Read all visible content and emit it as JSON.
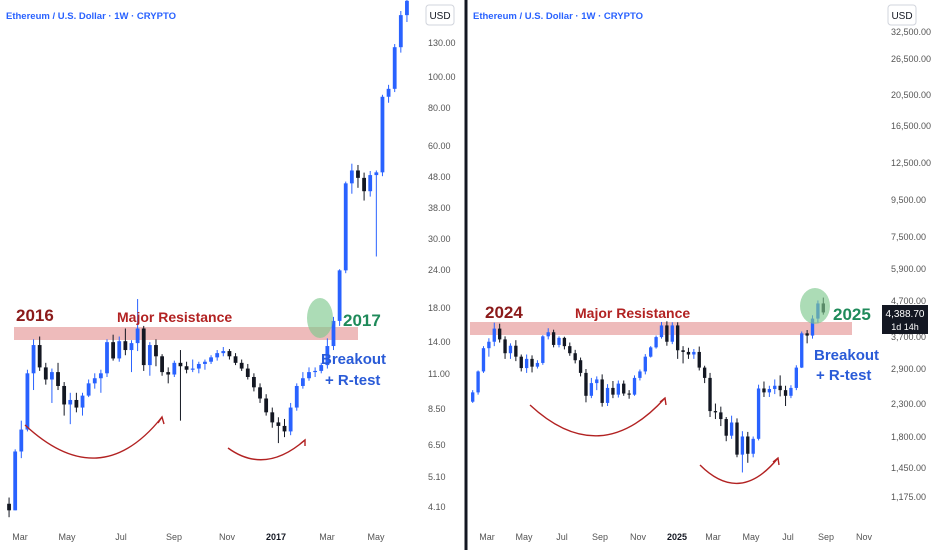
{
  "colors": {
    "up": "#2962ff",
    "down": "#131722",
    "zone": "#e8a4a4",
    "zone_label": "#b22222",
    "year_left": "#8b1a1a",
    "year_right": "#1f8a5a",
    "circle": "#7fc98f",
    "note": "#2a5bd7",
    "arc": "#b22222",
    "axis_text": "#555555",
    "title_text": "#2962ff",
    "divider": "#131722"
  },
  "panels": [
    {
      "id": "left",
      "title": "Ethereum / U.S. Dollar · 1W · CRYPTO",
      "currency": "USD",
      "x_ticks": [
        "Mar",
        "May",
        "Jul",
        "Sep",
        "Nov",
        "2017",
        "Mar",
        "May"
      ],
      "y_ticks": [
        "130.00",
        "100.00",
        "80.00",
        "60.00",
        "48.00",
        "38.00",
        "30.00",
        "24.00",
        "18.00",
        "14.00",
        "11.00",
        "8.50",
        "6.50",
        "5.10",
        "4.10"
      ],
      "zone_label": "Major Resistance",
      "year_start": "2016",
      "year_end": "2017",
      "note_line1": "Breakout",
      "note_line2": "+ R-test"
    },
    {
      "id": "right",
      "title": "Ethereum / U.S. Dollar · 1W · CRYPTO",
      "currency": "USD",
      "x_ticks": [
        "Mar",
        "May",
        "Jul",
        "Sep",
        "Nov",
        "2025",
        "Mar",
        "May",
        "Jul",
        "Sep",
        "Nov"
      ],
      "y_ticks": [
        "32,500.00",
        "26,500.00",
        "20,500.00",
        "16,500.00",
        "12,500.00",
        "9,500.00",
        "7,500.00",
        "5,900.00",
        "4,700.00",
        "3,700.00",
        "2,900.00",
        "2,300.00",
        "1,800.00",
        "1,450.00",
        "1,175.00"
      ],
      "last_price": "4,388.70",
      "countdown": "1d 14h",
      "zone_label": "Major Resistance",
      "year_start": "2024",
      "year_end": "2025",
      "note_line1": "Breakout",
      "note_line2": "+ R-test"
    }
  ],
  "chart_data": [
    {
      "type": "candlestick",
      "title": "Ethereum / U.S. Dollar · 1W · CRYPTO",
      "ylabel": "USD",
      "yscale": "log",
      "ylim": [
        3.6,
        185
      ],
      "resistance_zone": [
        13.9,
        15.2
      ],
      "annotations": [
        "2016",
        "Major Resistance",
        "2017",
        "Breakout",
        "+ R-test"
      ],
      "candles": [
        [
          4.2,
          4.4,
          3.8,
          4.0
        ],
        [
          4.0,
          6.3,
          4.0,
          6.2
        ],
        [
          6.2,
          7.8,
          5.9,
          7.3
        ],
        [
          7.3,
          11.4,
          7.2,
          11.1
        ],
        [
          11.1,
          14.3,
          9.8,
          13.7
        ],
        [
          13.7,
          14.6,
          11.3,
          11.6
        ],
        [
          11.6,
          12.0,
          10.2,
          10.6
        ],
        [
          10.6,
          11.5,
          8.9,
          11.2
        ],
        [
          11.2,
          12.0,
          9.8,
          10.1
        ],
        [
          10.1,
          10.4,
          8.1,
          8.8
        ],
        [
          8.8,
          9.6,
          7.6,
          9.1
        ],
        [
          9.1,
          9.6,
          8.3,
          8.6
        ],
        [
          8.6,
          9.6,
          8.1,
          9.4
        ],
        [
          9.4,
          10.6,
          9.3,
          10.3
        ],
        [
          10.3,
          11.1,
          9.9,
          10.7
        ],
        [
          10.7,
          11.4,
          9.6,
          11.1
        ],
        [
          11.1,
          14.3,
          10.8,
          14.0
        ],
        [
          14.0,
          14.8,
          12.2,
          12.4
        ],
        [
          12.4,
          14.6,
          12.1,
          14.1
        ],
        [
          14.1,
          15.5,
          12.7,
          13.2
        ],
        [
          13.2,
          14.2,
          11.2,
          13.9
        ],
        [
          13.9,
          19.3,
          13.1,
          15.5
        ],
        [
          15.5,
          15.8,
          11.3,
          11.8
        ],
        [
          11.8,
          14.0,
          10.9,
          13.7
        ],
        [
          13.7,
          14.3,
          11.7,
          12.6
        ],
        [
          12.6,
          12.8,
          10.9,
          11.2
        ],
        [
          11.2,
          11.6,
          10.3,
          11.0
        ],
        [
          11.0,
          12.2,
          10.8,
          12.0
        ],
        [
          12.0,
          13.2,
          7.8,
          11.7
        ],
        [
          11.7,
          12.1,
          11.1,
          11.4
        ],
        [
          11.4,
          12.3,
          11.2,
          11.5
        ],
        [
          11.5,
          12.1,
          11.1,
          11.9
        ],
        [
          11.9,
          12.3,
          11.4,
          12.1
        ],
        [
          12.1,
          12.7,
          11.9,
          12.5
        ],
        [
          12.5,
          13.2,
          12.2,
          12.9
        ],
        [
          12.9,
          13.5,
          12.6,
          13.1
        ],
        [
          13.1,
          13.3,
          12.3,
          12.6
        ],
        [
          12.6,
          12.9,
          11.8,
          12.0
        ],
        [
          12.0,
          12.3,
          11.3,
          11.5
        ],
        [
          11.5,
          11.9,
          10.6,
          10.8
        ],
        [
          10.8,
          11.1,
          9.7,
          10.0
        ],
        [
          10.0,
          10.3,
          8.9,
          9.2
        ],
        [
          9.2,
          9.5,
          8.1,
          8.3
        ],
        [
          8.3,
          8.6,
          7.4,
          7.7
        ],
        [
          7.7,
          8.0,
          6.6,
          7.5
        ],
        [
          7.5,
          7.9,
          6.9,
          7.2
        ],
        [
          7.2,
          8.9,
          7.0,
          8.6
        ],
        [
          8.6,
          10.3,
          8.4,
          10.1
        ],
        [
          10.1,
          11.2,
          9.9,
          10.7
        ],
        [
          10.7,
          11.6,
          10.5,
          11.2
        ],
        [
          11.2,
          11.6,
          10.8,
          11.3
        ],
        [
          11.3,
          12.0,
          11.1,
          11.8
        ],
        [
          11.8,
          14.4,
          11.5,
          13.6
        ],
        [
          13.6,
          16.9,
          13.2,
          16.4
        ],
        [
          16.4,
          24.1,
          15.8,
          23.9
        ],
        [
          23.9,
          46.3,
          23.4,
          45.7
        ],
        [
          45.7,
          52.9,
          42.3,
          50.3
        ],
        [
          50.3,
          52.4,
          44.2,
          47.6
        ],
        [
          47.6,
          49.5,
          40.2,
          43.1
        ],
        [
          43.1,
          50.1,
          41.4,
          48.6
        ],
        [
          48.6,
          50.3,
          26.5,
          49.6
        ],
        [
          49.6,
          88.4,
          48.2,
          87.1
        ],
        [
          87.1,
          95.2,
          83.3,
          92.4
        ],
        [
          92.4,
          129.0,
          90.2,
          126.0
        ],
        [
          126.0,
          165.0,
          121.0,
          160.0
        ],
        [
          160.0,
          185.0,
          152.0,
          178.0
        ]
      ]
    },
    {
      "type": "candlestick",
      "title": "Ethereum / U.S. Dollar · 1W · CRYPTO",
      "ylabel": "USD",
      "yscale": "log",
      "ylim": [
        1080,
        35000
      ],
      "last_price": 4388.7,
      "resistance_zone": [
        3550,
        4100
      ],
      "annotations": [
        "2024",
        "Major Resistance",
        "2025",
        "Breakout",
        "+ R-test"
      ],
      "candles": [
        [
          2320,
          2520,
          2300,
          2480
        ],
        [
          2480,
          2900,
          2440,
          2880
        ],
        [
          2880,
          3450,
          2850,
          3400
        ],
        [
          3400,
          3650,
          3200,
          3560
        ],
        [
          3560,
          4080,
          3450,
          3910
        ],
        [
          3910,
          4050,
          3540,
          3620
        ],
        [
          3620,
          3700,
          3150,
          3280
        ],
        [
          3280,
          3520,
          3150,
          3460
        ],
        [
          3460,
          3600,
          3100,
          3200
        ],
        [
          3200,
          3250,
          2880,
          2950
        ],
        [
          2950,
          3250,
          2850,
          3150
        ],
        [
          3150,
          3230,
          2860,
          2980
        ],
        [
          2980,
          3120,
          2940,
          3060
        ],
        [
          3060,
          3730,
          3020,
          3700
        ],
        [
          3700,
          3920,
          3620,
          3810
        ],
        [
          3810,
          3880,
          3420,
          3480
        ],
        [
          3480,
          3700,
          3420,
          3660
        ],
        [
          3660,
          3690,
          3370,
          3450
        ],
        [
          3450,
          3540,
          3220,
          3280
        ],
        [
          3280,
          3360,
          3050,
          3120
        ],
        [
          3120,
          3180,
          2780,
          2850
        ],
        [
          2850,
          2930,
          2310,
          2420
        ],
        [
          2420,
          2750,
          2380,
          2650
        ],
        [
          2650,
          2780,
          2520,
          2720
        ],
        [
          2720,
          2820,
          2240,
          2300
        ],
        [
          2300,
          2630,
          2250,
          2560
        ],
        [
          2560,
          2690,
          2380,
          2440
        ],
        [
          2440,
          2700,
          2390,
          2640
        ],
        [
          2640,
          2700,
          2420,
          2460
        ],
        [
          2460,
          2520,
          2370,
          2440
        ],
        [
          2440,
          2800,
          2420,
          2750
        ],
        [
          2750,
          2920,
          2700,
          2880
        ],
        [
          2880,
          3260,
          2820,
          3200
        ],
        [
          3200,
          3450,
          3180,
          3420
        ],
        [
          3420,
          3720,
          3390,
          3680
        ],
        [
          3680,
          4100,
          3640,
          4000
        ],
        [
          4000,
          4120,
          3460,
          3560
        ],
        [
          3560,
          4090,
          3500,
          4000
        ],
        [
          4000,
          4090,
          3150,
          3350
        ],
        [
          3350,
          3450,
          3050,
          3310
        ],
        [
          3310,
          3410,
          3150,
          3250
        ],
        [
          3250,
          3380,
          3150,
          3310
        ],
        [
          3310,
          3440,
          2900,
          2960
        ],
        [
          2960,
          3000,
          2650,
          2750
        ],
        [
          2750,
          2850,
          2080,
          2170
        ],
        [
          2170,
          2290,
          2050,
          2150
        ],
        [
          2150,
          2240,
          1950,
          2050
        ],
        [
          2050,
          2080,
          1750,
          1820
        ],
        [
          1820,
          2100,
          1780,
          2000
        ],
        [
          2000,
          2060,
          1560,
          1590
        ],
        [
          1590,
          1880,
          1400,
          1810
        ],
        [
          1810,
          1870,
          1500,
          1600
        ],
        [
          1600,
          1810,
          1560,
          1780
        ],
        [
          1780,
          2620,
          1760,
          2550
        ],
        [
          2550,
          2680,
          2400,
          2480
        ],
        [
          2480,
          2600,
          2400,
          2540
        ],
        [
          2540,
          2720,
          2450,
          2600
        ],
        [
          2600,
          2800,
          2410,
          2520
        ],
        [
          2520,
          2600,
          2250,
          2420
        ],
        [
          2420,
          2610,
          2380,
          2560
        ],
        [
          2560,
          3010,
          2520,
          2960
        ],
        [
          2960,
          3830,
          2950,
          3780
        ],
        [
          3780,
          3870,
          3520,
          3720
        ],
        [
          3720,
          4300,
          3640,
          4200
        ],
        [
          4200,
          4780,
          4080,
          4680
        ],
        [
          4680,
          4880,
          4320,
          4388.7
        ]
      ]
    }
  ]
}
